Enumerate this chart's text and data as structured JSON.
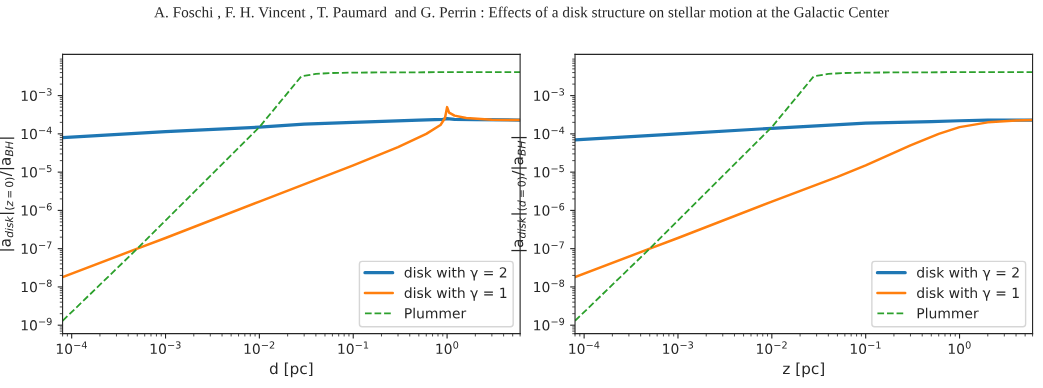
{
  "chart_data": [
    {
      "type": "line",
      "annotations": [
        "A. Foschi , F. H. Vincent , T. Paumard  and G. Perrin : Effects of a disk structure on stellar motion at the Galactic Center"
      ],
      "xlabel": "d [pc]",
      "ylabel": "|a$_{disk}$|$_{(z=0)}$/|a$_{BH}$|",
      "log": "xy",
      "grid": false,
      "legend": "bottom right",
      "xlim": [
        8e-05,
        6
      ],
      "ylim": [
        6e-10,
        0.012
      ],
      "xticks": [
        {
          "value": 0.0001,
          "label": "10$^{−4}$"
        },
        {
          "value": 0.001,
          "label": "10$^{−3}$"
        },
        {
          "value": 0.01,
          "label": "10$^{−2}$"
        },
        {
          "value": 0.1,
          "label": "10$^{−1}$"
        },
        {
          "value": 1,
          "label": "10$^{0}$"
        }
      ],
      "yticks": [
        {
          "value": 1e-09,
          "label": "10$^{−9}$"
        },
        {
          "value": 1e-08,
          "label": "10$^{−8}$"
        },
        {
          "value": 1e-07,
          "label": "10$^{−7}$"
        },
        {
          "value": 1e-06,
          "label": "10$^{−6}$"
        },
        {
          "value": 1e-05,
          "label": "10$^{−5}$"
        },
        {
          "value": 0.0001,
          "label": "10$^{−4}$"
        },
        {
          "value": 0.001,
          "label": "10$^{−3}$"
        }
      ],
      "series": [
        {
          "name": "disk with γ = 2",
          "color": "#1f77b4",
          "line_style": "solid",
          "x": [
            8e-05,
            0.001,
            0.01,
            0.03,
            0.1,
            0.5,
            0.9,
            1.0,
            1.2,
            2,
            6
          ],
          "values": [
            8e-05,
            0.000115,
            0.00015,
            0.00018,
            0.0002,
            0.00023,
            0.00024,
            0.00025,
            0.00024,
            0.000235,
            0.00023
          ]
        },
        {
          "name": "disk with γ = 1",
          "color": "#ff7f0e",
          "line_style": "solid",
          "x": [
            8e-05,
            0.0005,
            0.001,
            0.01,
            0.1,
            0.3,
            0.6,
            0.85,
            0.95,
            1.0,
            1.05,
            1.2,
            1.6,
            3,
            6
          ],
          "values": [
            1.8e-08,
            1e-07,
            1.9e-07,
            1.7e-06,
            1.5e-05,
            4.5e-05,
            0.0001,
            0.00017,
            0.00026,
            0.0005,
            0.00036,
            0.0003,
            0.00026,
            0.000235,
            0.00023
          ]
        },
        {
          "name": "Plummer",
          "color": "#2ca02c",
          "line_style": "dashed",
          "x": [
            8e-05,
            0.0005,
            0.01,
            0.028,
            0.04,
            0.06,
            0.1,
            1,
            6
          ],
          "values": [
            1.3e-09,
            1e-07,
            0.00015,
            0.0032,
            0.0037,
            0.0039,
            0.004,
            0.0041,
            0.0041
          ]
        }
      ]
    },
    {
      "type": "line",
      "xlabel": "z [pc]",
      "ylabel": "|a$_{disk}$|$_{(d=0)}$/|a$_{BH}$|",
      "log": "xy",
      "grid": false,
      "legend": "bottom right",
      "xlim": [
        8e-05,
        6
      ],
      "ylim": [
        6e-10,
        0.012
      ],
      "xticks": [
        {
          "value": 0.0001,
          "label": "10$^{−4}$"
        },
        {
          "value": 0.001,
          "label": "10$^{−3}$"
        },
        {
          "value": 0.01,
          "label": "10$^{−2}$"
        },
        {
          "value": 0.1,
          "label": "10$^{−1}$"
        },
        {
          "value": 1,
          "label": "10$^{0}$"
        }
      ],
      "yticks": [
        {
          "value": 1e-09,
          "label": "10$^{−9}$"
        },
        {
          "value": 1e-08,
          "label": "10$^{−8}$"
        },
        {
          "value": 1e-07,
          "label": "10$^{−7}$"
        },
        {
          "value": 1e-06,
          "label": "10$^{−6}$"
        },
        {
          "value": 1e-05,
          "label": "10$^{−5}$"
        },
        {
          "value": 0.0001,
          "label": "10$^{−4}$"
        },
        {
          "value": 0.001,
          "label": "10$^{−3}$"
        }
      ],
      "series": [
        {
          "name": "disk with γ = 2",
          "color": "#1f77b4",
          "line_style": "solid",
          "x": [
            8e-05,
            0.001,
            0.01,
            0.1,
            0.5,
            1,
            2,
            6
          ],
          "values": [
            7e-05,
            0.0001,
            0.00014,
            0.00019,
            0.00021,
            0.00022,
            0.000228,
            0.00023
          ]
        },
        {
          "name": "disk with γ = 1",
          "color": "#ff7f0e",
          "line_style": "solid",
          "x": [
            8e-05,
            0.0005,
            0.001,
            0.01,
            0.05,
            0.1,
            0.3,
            0.6,
            1,
            2,
            4,
            6
          ],
          "values": [
            1.8e-08,
            1e-07,
            1.9e-07,
            1.7e-06,
            7.5e-06,
            1.5e-05,
            5e-05,
            0.0001,
            0.00015,
            0.0002,
            0.000225,
            0.00023
          ]
        },
        {
          "name": "Plummer",
          "color": "#2ca02c",
          "line_style": "dashed",
          "x": [
            8e-05,
            0.0005,
            0.01,
            0.028,
            0.04,
            0.06,
            0.1,
            1,
            6
          ],
          "values": [
            1.3e-09,
            1e-07,
            0.00015,
            0.0032,
            0.0037,
            0.0039,
            0.004,
            0.0041,
            0.0041
          ]
        }
      ]
    }
  ]
}
